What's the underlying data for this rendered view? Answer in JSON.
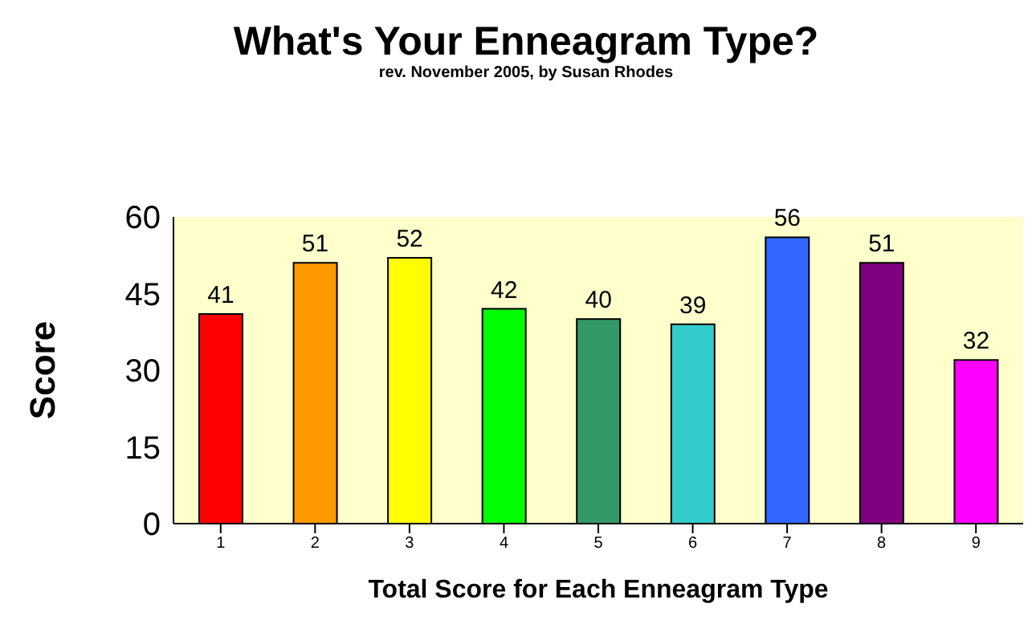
{
  "chart_data": {
    "type": "bar",
    "title": "What's Your Enneagram Type?",
    "subtitle": "rev. November 2005, by Susan Rhodes",
    "xlabel": "Total Score for Each Enneagram Type",
    "ylabel": "Score",
    "categories": [
      "1",
      "2",
      "3",
      "4",
      "5",
      "6",
      "7",
      "8",
      "9"
    ],
    "values": [
      41,
      51,
      52,
      42,
      40,
      39,
      56,
      51,
      32
    ],
    "colors": [
      "#ff0000",
      "#ff9900",
      "#ffff00",
      "#00ff00",
      "#339966",
      "#33cccc",
      "#3366ff",
      "#800080",
      "#ff00ff"
    ],
    "ylim": [
      0,
      60
    ],
    "yticks": [
      0,
      15,
      30,
      45,
      60
    ],
    "grid": false,
    "data_labels": true
  }
}
